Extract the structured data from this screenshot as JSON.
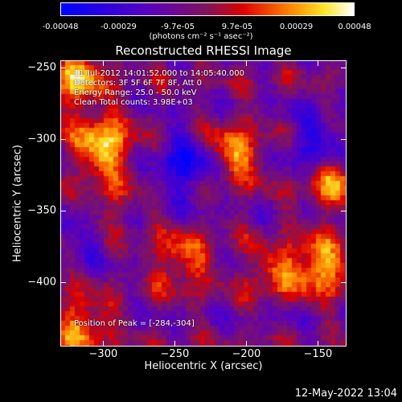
{
  "colorbar": {
    "ticks": [
      "-0.00048",
      "-0.00029",
      "-9.7e-05",
      "9.7e-05",
      "0.00029",
      "0.00048"
    ],
    "unit": "(photons cm⁻² s⁻¹ asec⁻²)",
    "colormap": "blue-purple-red-orange-yellow-white"
  },
  "chart_data": {
    "type": "heatmap",
    "title": "Reconstructed RHESSI Image",
    "xlabel": "Heliocentric X (arcsec)",
    "ylabel": "Heliocentric Y (arcsec)",
    "xlim": [
      -330,
      -130
    ],
    "ylim": [
      -445,
      -245
    ],
    "xticks": [
      "-300",
      "-250",
      "-200",
      "-150"
    ],
    "yticks": [
      "-250",
      "-300",
      "-350",
      "-400"
    ],
    "zlim": [
      -0.00048,
      0.00048
    ],
    "grid": false,
    "annotations": {
      "line1": "11-Jul-2012 14:01:52.000 to 14:05:40.000",
      "line2": "Detectors: 3F 5F 6F 7F 8F, Att 0",
      "line3": "Energy Range: 25.0 - 50.0 keV",
      "line4": "Clean     Total counts: 3.98E+03",
      "peak": "Position of Peak = [-284,-304]"
    },
    "hotspots": [
      {
        "x": -300,
        "y": -305,
        "value": 0.00048
      },
      {
        "x": -318,
        "y": -260,
        "value": 0.0004
      },
      {
        "x": -210,
        "y": -310,
        "value": 0.0004
      },
      {
        "x": -140,
        "y": -330,
        "value": 0.00035
      },
      {
        "x": -300,
        "y": -350,
        "value": 0.0003
      },
      {
        "x": -180,
        "y": -395,
        "value": 0.00042
      },
      {
        "x": -150,
        "y": -390,
        "value": 0.00045
      },
      {
        "x": -245,
        "y": -385,
        "value": 0.0003
      },
      {
        "x": -315,
        "y": -430,
        "value": 0.00035
      }
    ],
    "coldspots": [
      {
        "x": -240,
        "y": -318,
        "value": -0.00035
      },
      {
        "x": -150,
        "y": -305,
        "value": -0.00028
      },
      {
        "x": -310,
        "y": -360,
        "value": -0.00025
      },
      {
        "x": -175,
        "y": -400,
        "value": -0.0002
      }
    ]
  },
  "footer": {
    "timestamp": "12-May-2022 13:04"
  }
}
